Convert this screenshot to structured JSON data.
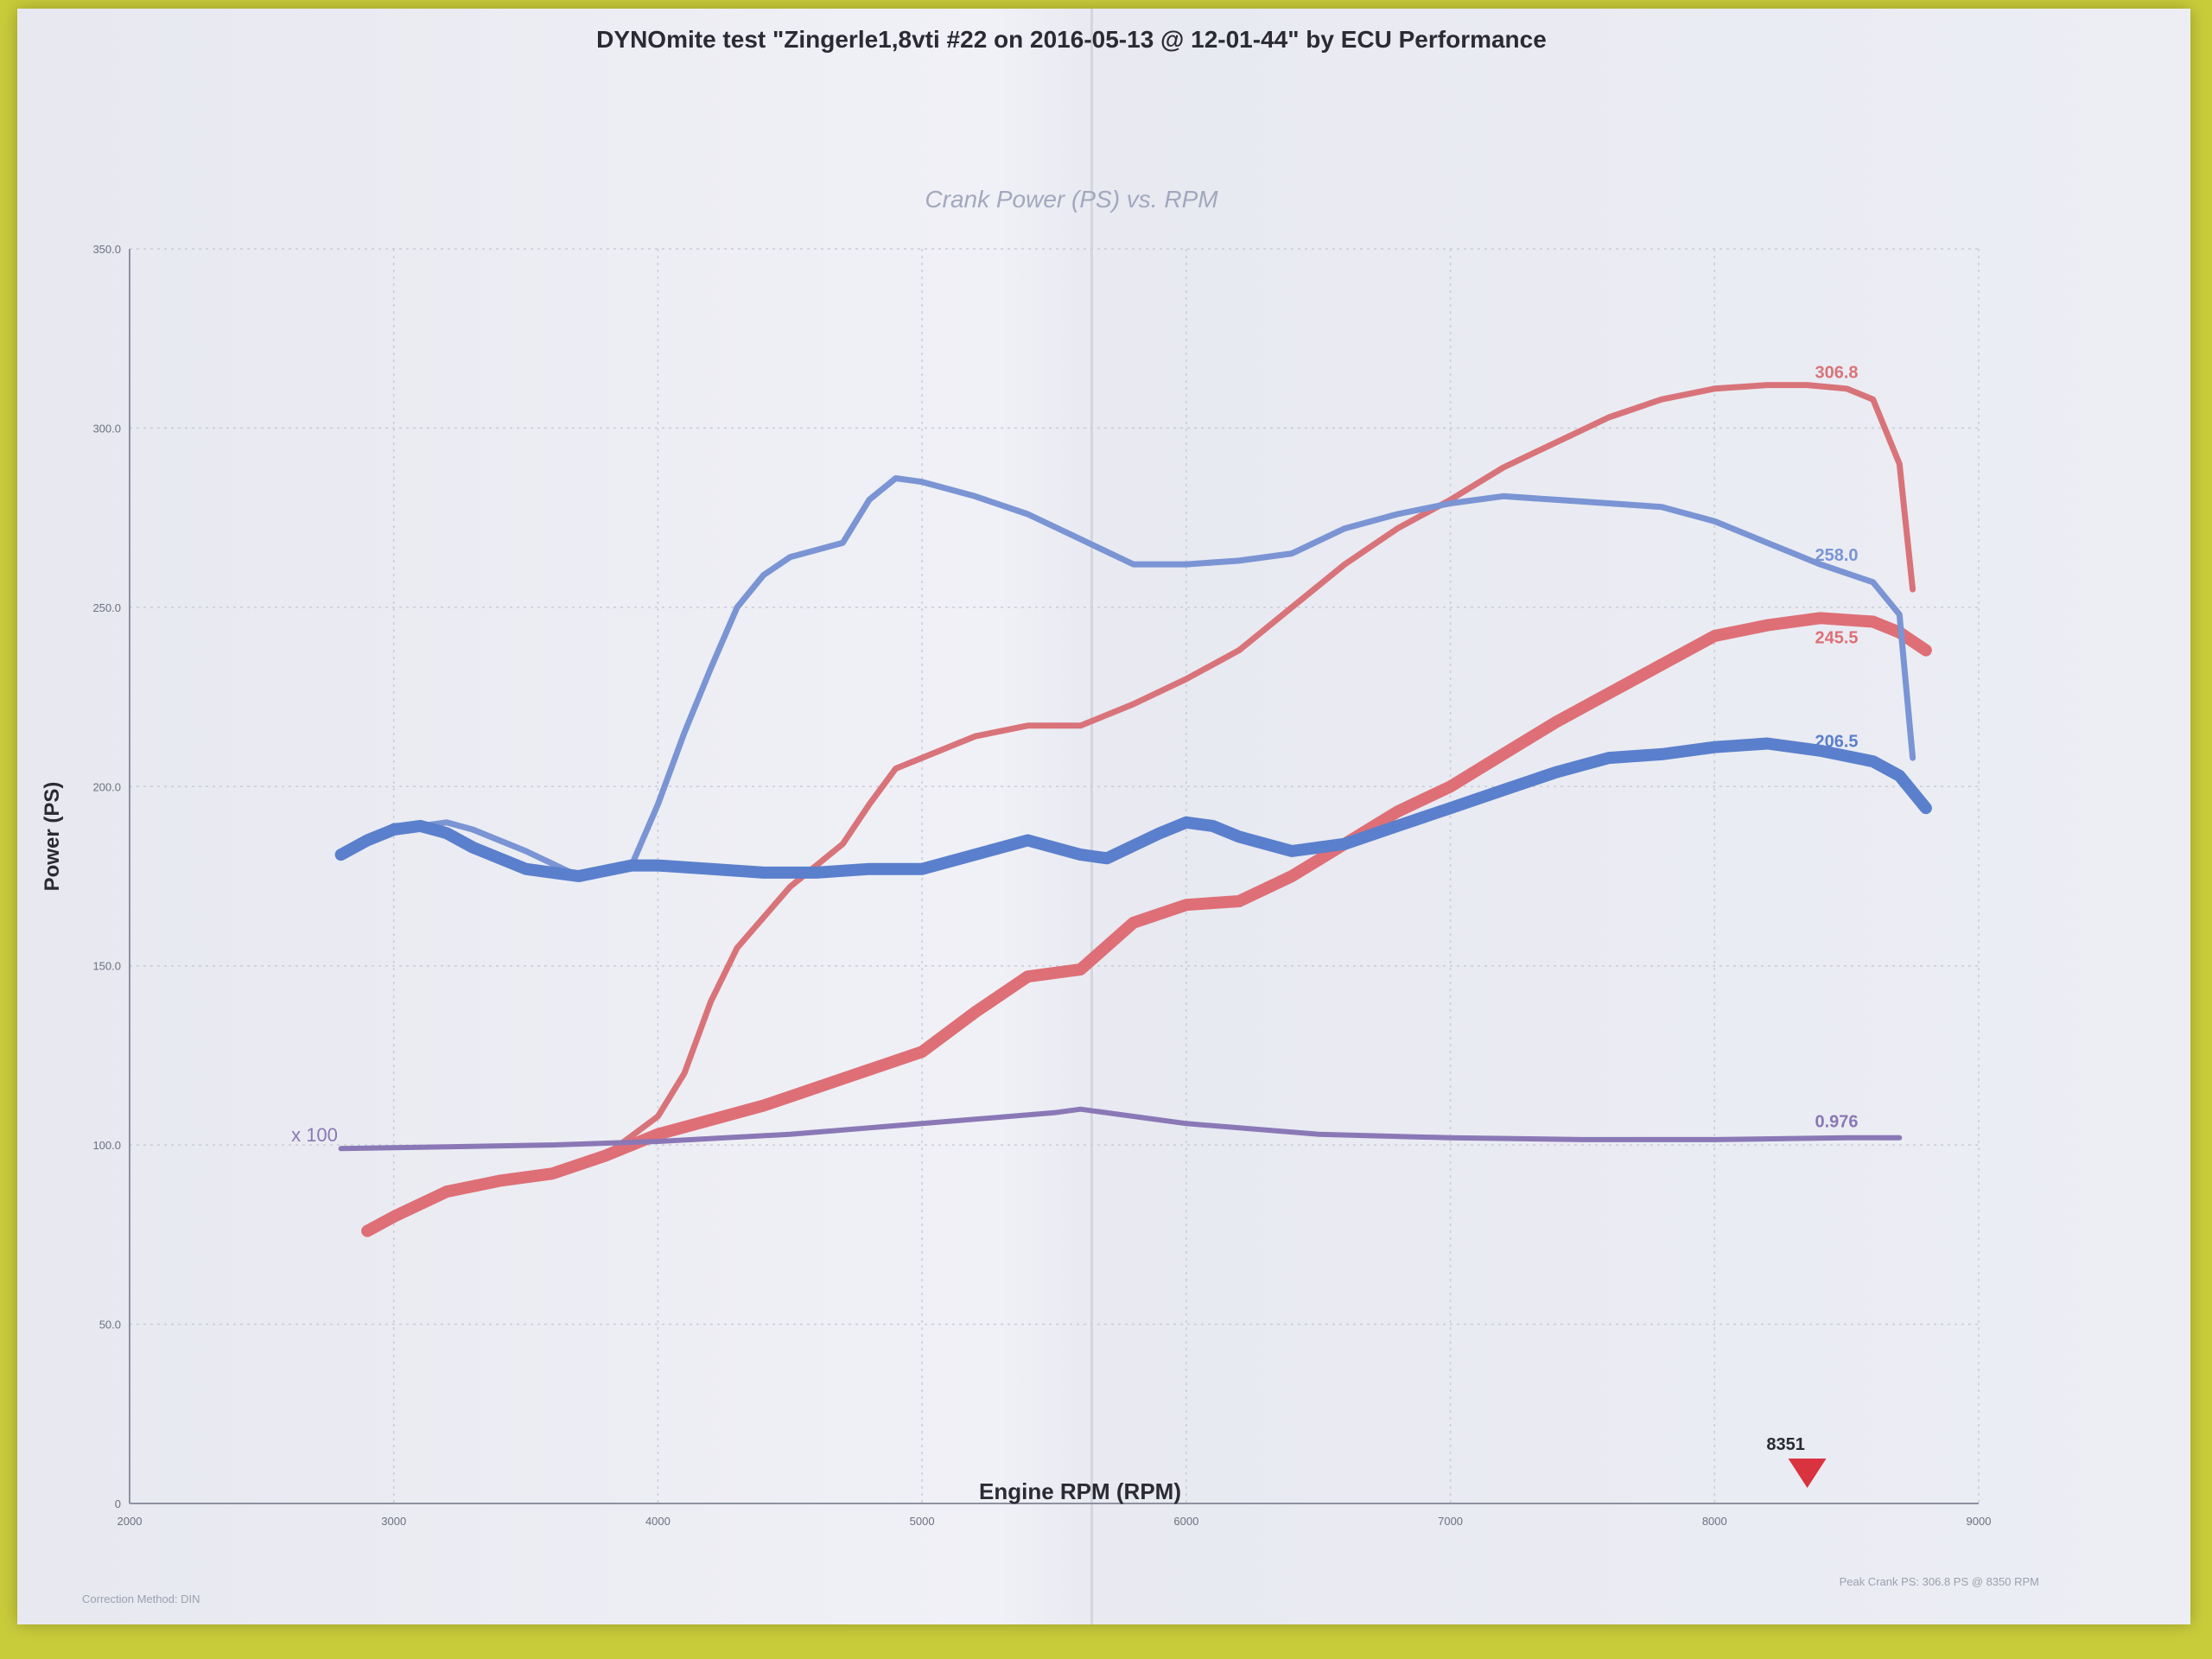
{
  "header": {
    "title": "DYNOmite test \"Zingerle1,8vti #22 on 2016-05-13 @ 12-01-44\" by ECU Performance"
  },
  "footer": {
    "left_note": "Correction Method: DIN",
    "right_note": "Peak Crank PS: 306.8 PS @ 8350 RPM"
  },
  "chart_data": {
    "type": "line",
    "title": "Crank Power (PS) vs. RPM",
    "xlabel": "Engine RPM (RPM)",
    "ylabel": "Power (PS)",
    "xlim": [
      2000,
      9000
    ],
    "ylim": [
      0,
      350
    ],
    "x_ticks": [
      2000,
      3000,
      4000,
      5000,
      6000,
      7000,
      8000,
      9000
    ],
    "x_tick_labels": [
      "2000",
      "3000",
      "4000",
      "5000",
      "6000",
      "7000",
      "8000",
      "9000"
    ],
    "y_ticks": [
      0,
      50,
      100,
      150,
      200,
      250,
      300,
      350
    ],
    "y_tick_labels": [
      "0",
      "50.0",
      "100.0",
      "150.0",
      "200.0",
      "250.0",
      "300.0",
      "350.0"
    ],
    "grid": true,
    "marker": {
      "rpm": 8351,
      "label": "8351",
      "color": "#d9333f"
    },
    "correction_label": {
      "x": 2700,
      "y": 101,
      "text": "x 100"
    },
    "series": [
      {
        "color": "#d9737a",
        "width": 7,
        "points": [
          [
            2900,
            76
          ],
          [
            3000,
            80
          ],
          [
            3200,
            87
          ],
          [
            3400,
            90
          ],
          [
            3600,
            92
          ],
          [
            3800,
            97
          ],
          [
            4000,
            108
          ],
          [
            4100,
            120
          ],
          [
            4200,
            140
          ],
          [
            4300,
            155
          ],
          [
            4500,
            172
          ],
          [
            4700,
            184
          ],
          [
            4800,
            195
          ],
          [
            4900,
            205
          ],
          [
            5000,
            208
          ],
          [
            5200,
            214
          ],
          [
            5400,
            217
          ],
          [
            5600,
            217
          ],
          [
            5800,
            223
          ],
          [
            6000,
            230
          ],
          [
            6200,
            238
          ],
          [
            6400,
            250
          ],
          [
            6600,
            262
          ],
          [
            6800,
            272
          ],
          [
            7000,
            280
          ],
          [
            7200,
            289
          ],
          [
            7400,
            296
          ],
          [
            7600,
            303
          ],
          [
            7800,
            308
          ],
          [
            8000,
            311
          ],
          [
            8200,
            312
          ],
          [
            8350,
            312
          ],
          [
            8500,
            311
          ],
          [
            8600,
            308
          ],
          [
            8700,
            290
          ],
          [
            8750,
            255
          ]
        ]
      },
      {
        "color": "#de6f76",
        "width": 14,
        "points": [
          [
            2900,
            76
          ],
          [
            3000,
            80
          ],
          [
            3200,
            87
          ],
          [
            3400,
            90
          ],
          [
            3600,
            92
          ],
          [
            3800,
            97
          ],
          [
            4000,
            103
          ],
          [
            4200,
            107
          ],
          [
            4400,
            111
          ],
          [
            4600,
            116
          ],
          [
            4800,
            121
          ],
          [
            5000,
            126
          ],
          [
            5200,
            137
          ],
          [
            5400,
            147
          ],
          [
            5600,
            149
          ],
          [
            5800,
            162
          ],
          [
            6000,
            167
          ],
          [
            6200,
            168
          ],
          [
            6400,
            175
          ],
          [
            6600,
            184
          ],
          [
            6800,
            193
          ],
          [
            7000,
            200
          ],
          [
            7200,
            209
          ],
          [
            7400,
            218
          ],
          [
            7600,
            226
          ],
          [
            7800,
            234
          ],
          [
            8000,
            242
          ],
          [
            8200,
            245
          ],
          [
            8400,
            247
          ],
          [
            8600,
            246
          ],
          [
            8700,
            243
          ],
          [
            8800,
            238
          ]
        ]
      },
      {
        "color": "#7a94d4",
        "width": 7,
        "points": [
          [
            2800,
            181
          ],
          [
            2900,
            185
          ],
          [
            3000,
            189
          ],
          [
            3100,
            189
          ],
          [
            3200,
            190
          ],
          [
            3300,
            188
          ],
          [
            3500,
            182
          ],
          [
            3700,
            175
          ],
          [
            3900,
            178
          ],
          [
            4000,
            195
          ],
          [
            4100,
            215
          ],
          [
            4200,
            233
          ],
          [
            4300,
            250
          ],
          [
            4400,
            259
          ],
          [
            4500,
            264
          ],
          [
            4700,
            268
          ],
          [
            4800,
            280
          ],
          [
            4900,
            286
          ],
          [
            5000,
            285
          ],
          [
            5200,
            281
          ],
          [
            5400,
            276
          ],
          [
            5600,
            269
          ],
          [
            5800,
            262
          ],
          [
            6000,
            262
          ],
          [
            6200,
            263
          ],
          [
            6400,
            265
          ],
          [
            6600,
            272
          ],
          [
            6800,
            276
          ],
          [
            7000,
            279
          ],
          [
            7200,
            281
          ],
          [
            7400,
            280
          ],
          [
            7600,
            279
          ],
          [
            7800,
            278
          ],
          [
            8000,
            274
          ],
          [
            8200,
            268
          ],
          [
            8400,
            262
          ],
          [
            8600,
            257
          ],
          [
            8700,
            248
          ],
          [
            8750,
            208
          ]
        ]
      },
      {
        "color": "#5a7fcc",
        "width": 14,
        "points": [
          [
            2800,
            181
          ],
          [
            2900,
            185
          ],
          [
            3000,
            188
          ],
          [
            3100,
            189
          ],
          [
            3200,
            187
          ],
          [
            3300,
            183
          ],
          [
            3500,
            177
          ],
          [
            3700,
            175
          ],
          [
            3900,
            178
          ],
          [
            4000,
            178
          ],
          [
            4200,
            177
          ],
          [
            4400,
            176
          ],
          [
            4600,
            176
          ],
          [
            4800,
            177
          ],
          [
            5000,
            177
          ],
          [
            5200,
            181
          ],
          [
            5400,
            185
          ],
          [
            5600,
            181
          ],
          [
            5700,
            180
          ],
          [
            5900,
            187
          ],
          [
            6000,
            190
          ],
          [
            6100,
            189
          ],
          [
            6200,
            186
          ],
          [
            6400,
            182
          ],
          [
            6600,
            184
          ],
          [
            6800,
            189
          ],
          [
            7000,
            194
          ],
          [
            7200,
            199
          ],
          [
            7400,
            204
          ],
          [
            7600,
            208
          ],
          [
            7800,
            209
          ],
          [
            8000,
            211
          ],
          [
            8200,
            212
          ],
          [
            8400,
            210
          ],
          [
            8600,
            207
          ],
          [
            8700,
            203
          ],
          [
            8800,
            194
          ]
        ]
      },
      {
        "color": "#8a78b6",
        "width": 6,
        "points": [
          [
            2800,
            99
          ],
          [
            3200,
            99.5
          ],
          [
            3600,
            100
          ],
          [
            4000,
            101
          ],
          [
            4500,
            103
          ],
          [
            5000,
            106
          ],
          [
            5500,
            109
          ],
          [
            5600,
            110
          ],
          [
            6000,
            106
          ],
          [
            6500,
            103
          ],
          [
            7000,
            102
          ],
          [
            7500,
            101.5
          ],
          [
            8000,
            101.5
          ],
          [
            8500,
            102
          ],
          [
            8700,
            102
          ]
        ]
      }
    ],
    "series_labels": [
      {
        "text": "306.8",
        "x": 8380,
        "y": 314,
        "color": "#d9737a"
      },
      {
        "text": "258.0",
        "x": 8380,
        "y": 263,
        "color": "#7a94d4"
      },
      {
        "text": "245.5",
        "x": 8380,
        "y": 240,
        "color": "#de6f76"
      },
      {
        "text": "206.5",
        "x": 8380,
        "y": 211,
        "color": "#5a7fcc"
      },
      {
        "text": "0.976",
        "x": 8380,
        "y": 105,
        "color": "#8a78b6"
      }
    ]
  }
}
